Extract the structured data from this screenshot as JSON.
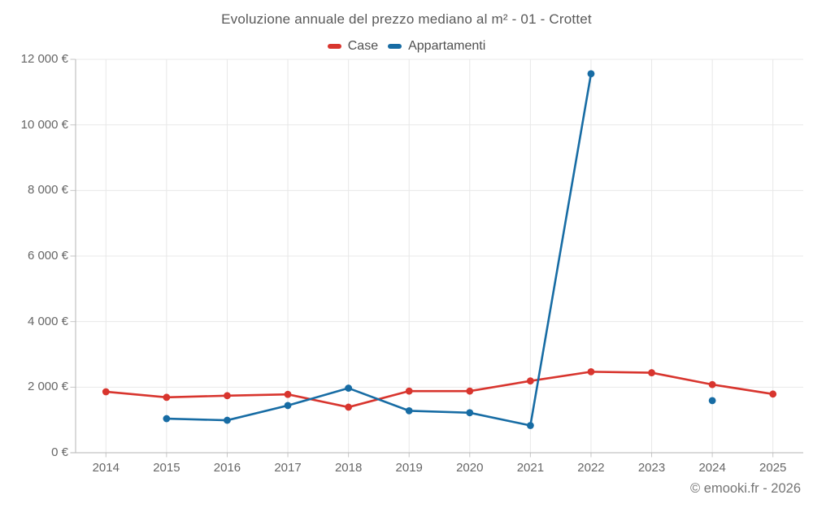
{
  "title": "Evoluzione annuale del prezzo mediano al m² - 01 - Crottet",
  "footer": "© emooki.fr - 2026",
  "colors": {
    "case_red": "#d8352e",
    "appartamenti_blue": "#176ca4",
    "gridline": "#e8e8e8",
    "axis": "#b6b6b6",
    "tick": "#c6c6c6",
    "title_text": "#595959",
    "tick_text": "#666666",
    "footer_text": "#757575",
    "background": "#ffffff"
  },
  "chart_data": {
    "type": "line",
    "title": "Evoluzione annuale del prezzo mediano al m² - 01 - Crottet",
    "categories": [
      "2014",
      "2015",
      "2016",
      "2017",
      "2018",
      "2019",
      "2020",
      "2021",
      "2022",
      "2023",
      "2024",
      "2025"
    ],
    "series": [
      {
        "name": "Case",
        "color": "#d8352e",
        "values": [
          1860,
          1690,
          1740,
          1780,
          1390,
          1880,
          1880,
          2190,
          2470,
          2440,
          2080,
          1790
        ]
      },
      {
        "name": "Appartamenti",
        "color": "#176ca4",
        "values": [
          null,
          1040,
          990,
          1440,
          1970,
          1280,
          1220,
          830,
          11560,
          null,
          1590,
          null
        ]
      }
    ],
    "y_ticks": [
      0,
      2000,
      4000,
      6000,
      8000,
      10000,
      12000
    ],
    "y_tick_labels": [
      "0 €",
      "2 000 €",
      "4 000 €",
      "6 000 €",
      "8 000 €",
      "10 000 €",
      "12 000 €"
    ],
    "xlabel": "",
    "ylabel": "",
    "ylim": [
      0,
      12000
    ],
    "grid": true,
    "legend_position": "top",
    "marker_radius": 4.4,
    "line_width": 2.6
  }
}
